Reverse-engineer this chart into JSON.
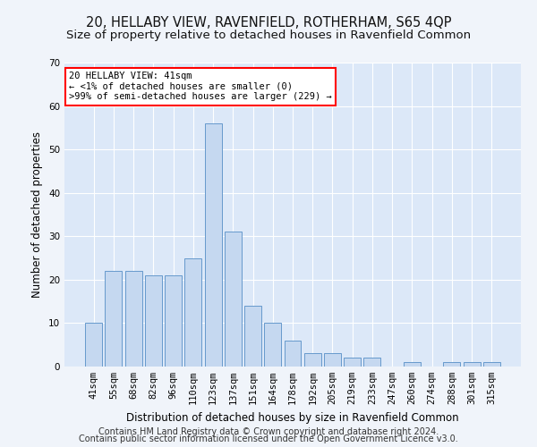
{
  "title1": "20, HELLABY VIEW, RAVENFIELD, ROTHERHAM, S65 4QP",
  "title2": "Size of property relative to detached houses in Ravenfield Common",
  "xlabel": "Distribution of detached houses by size in Ravenfield Common",
  "ylabel": "Number of detached properties",
  "footnote1": "Contains HM Land Registry data © Crown copyright and database right 2024.",
  "footnote2": "Contains public sector information licensed under the Open Government Licence v3.0.",
  "annotation_line1": "20 HELLABY VIEW: 41sqm",
  "annotation_line2": "← <1% of detached houses are smaller (0)",
  "annotation_line3": ">99% of semi-detached houses are larger (229) →",
  "bar_labels": [
    "41sqm",
    "55sqm",
    "68sqm",
    "82sqm",
    "96sqm",
    "110sqm",
    "123sqm",
    "137sqm",
    "151sqm",
    "164sqm",
    "178sqm",
    "192sqm",
    "205sqm",
    "219sqm",
    "233sqm",
    "247sqm",
    "260sqm",
    "274sqm",
    "288sqm",
    "301sqm",
    "315sqm"
  ],
  "bar_values": [
    10,
    22,
    22,
    21,
    21,
    25,
    56,
    31,
    14,
    10,
    6,
    3,
    3,
    2,
    2,
    0,
    1,
    0,
    1,
    1,
    1
  ],
  "bar_color": "#c5d8f0",
  "bar_edge_color": "#6699cc",
  "bg_color": "#f0f4fa",
  "plot_bg_color": "#dce8f8",
  "ylim": [
    0,
    70
  ],
  "yticks": [
    0,
    10,
    20,
    30,
    40,
    50,
    60,
    70
  ],
  "grid_color": "#ffffff",
  "title1_fontsize": 10.5,
  "title2_fontsize": 9.5,
  "axis_label_fontsize": 8.5,
  "tick_fontsize": 7.5,
  "footnote_fontsize": 7,
  "annotation_fontsize": 7.5
}
